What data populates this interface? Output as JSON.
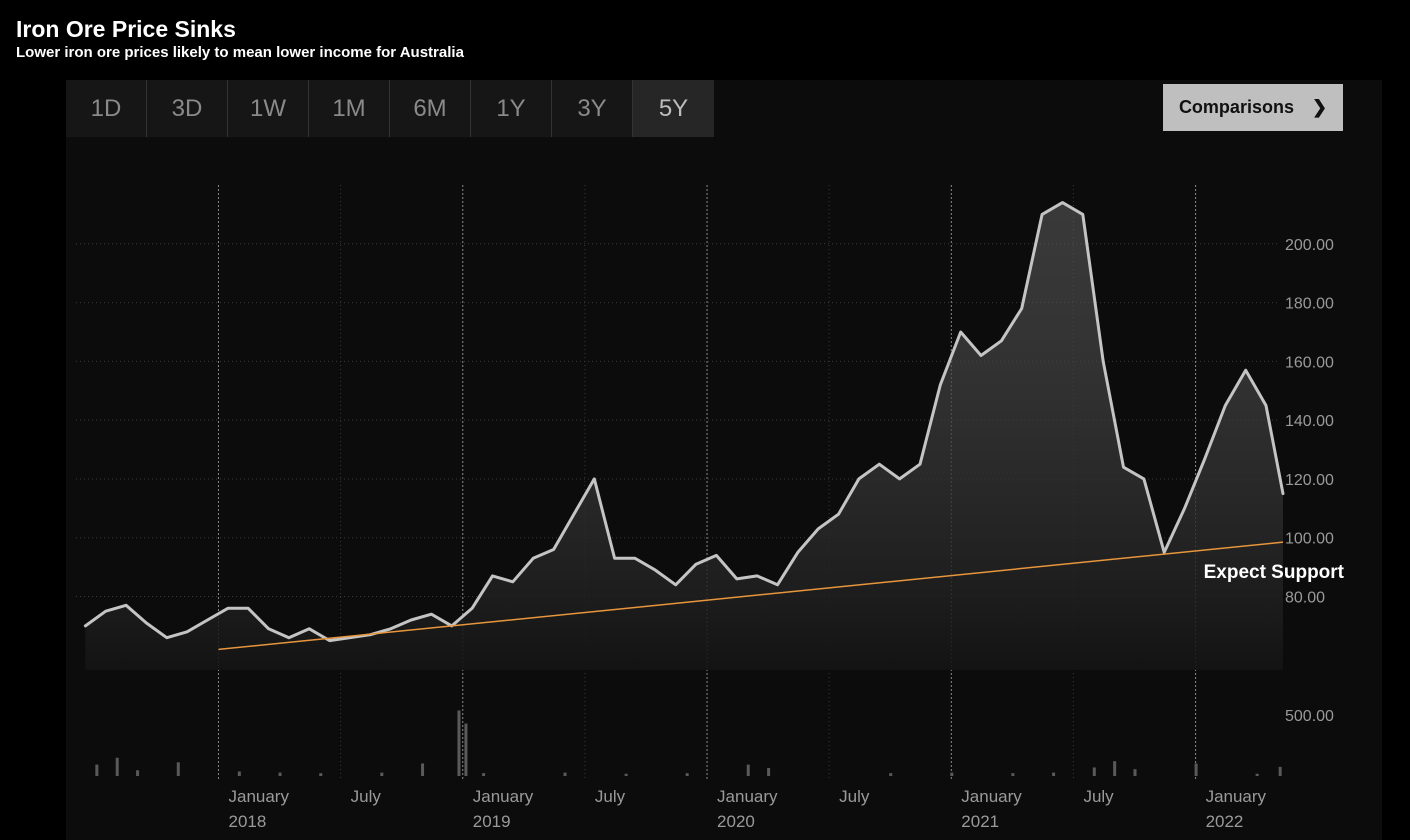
{
  "header": {
    "title": "Iron Ore Price Sinks",
    "subtitle": "Lower iron ore prices likely to mean lower income for Australia"
  },
  "toolbar": {
    "tabs": [
      {
        "label": "1D",
        "active": false
      },
      {
        "label": "3D",
        "active": false
      },
      {
        "label": "1W",
        "active": false
      },
      {
        "label": "1M",
        "active": false
      },
      {
        "label": "6M",
        "active": false
      },
      {
        "label": "1Y",
        "active": false
      },
      {
        "label": "3Y",
        "active": false
      },
      {
        "label": "5Y",
        "active": true
      }
    ],
    "comparisons_label": "Comparisons",
    "comparisons_icon": "chevron-right-icon"
  },
  "chart_data": {
    "type": "line",
    "title": "Iron Ore Price Sinks",
    "subtitle": "Lower iron ore prices likely to mean lower income for Australia",
    "x_axis": {
      "range": [
        "2017-06",
        "2022-05"
      ],
      "tick_labels": [
        {
          "month": "January",
          "year": "2018",
          "x": "2018-01"
        },
        {
          "month": "July",
          "year": "",
          "x": "2018-07"
        },
        {
          "month": "January",
          "year": "2019",
          "x": "2019-01"
        },
        {
          "month": "July",
          "year": "",
          "x": "2019-07"
        },
        {
          "month": "January",
          "year": "2020",
          "x": "2020-01"
        },
        {
          "month": "July",
          "year": "",
          "x": "2020-07"
        },
        {
          "month": "January",
          "year": "2021",
          "x": "2021-01"
        },
        {
          "month": "July",
          "year": "",
          "x": "2021-07"
        },
        {
          "month": "January",
          "year": "2022",
          "x": "2022-01"
        }
      ]
    },
    "y_axis": {
      "range": [
        55,
        220
      ],
      "ticks": [
        "80.00",
        "100.00",
        "120.00",
        "140.00",
        "160.00",
        "180.00",
        "200.00"
      ]
    },
    "grid": true,
    "price_series": {
      "name": "Iron ore price",
      "color": "#c4c4c4",
      "points": [
        [
          "2017-06-15",
          70
        ],
        [
          "2017-07-15",
          75
        ],
        [
          "2017-08-15",
          77
        ],
        [
          "2017-09-15",
          71
        ],
        [
          "2017-10-15",
          66
        ],
        [
          "2017-11-15",
          68
        ],
        [
          "2017-12-15",
          72
        ],
        [
          "2018-01-15",
          76
        ],
        [
          "2018-02-15",
          76
        ],
        [
          "2018-03-15",
          69
        ],
        [
          "2018-04-15",
          66
        ],
        [
          "2018-05-15",
          69
        ],
        [
          "2018-06-15",
          65
        ],
        [
          "2018-07-15",
          66
        ],
        [
          "2018-08-15",
          67
        ],
        [
          "2018-09-15",
          69
        ],
        [
          "2018-10-15",
          72
        ],
        [
          "2018-11-15",
          74
        ],
        [
          "2018-12-15",
          70
        ],
        [
          "2019-01-15",
          76
        ],
        [
          "2019-02-15",
          87
        ],
        [
          "2019-03-15",
          85
        ],
        [
          "2019-04-15",
          93
        ],
        [
          "2019-05-15",
          96
        ],
        [
          "2019-06-15",
          108
        ],
        [
          "2019-07-15",
          120
        ],
        [
          "2019-08-15",
          93
        ],
        [
          "2019-09-15",
          93
        ],
        [
          "2019-10-15",
          89
        ],
        [
          "2019-11-15",
          84
        ],
        [
          "2019-12-15",
          91
        ],
        [
          "2020-01-15",
          94
        ],
        [
          "2020-02-15",
          86
        ],
        [
          "2020-03-15",
          87
        ],
        [
          "2020-04-15",
          84
        ],
        [
          "2020-05-15",
          95
        ],
        [
          "2020-06-15",
          103
        ],
        [
          "2020-07-15",
          108
        ],
        [
          "2020-08-15",
          120
        ],
        [
          "2020-09-15",
          125
        ],
        [
          "2020-10-15",
          120
        ],
        [
          "2020-11-15",
          125
        ],
        [
          "2020-12-15",
          152
        ],
        [
          "2021-01-15",
          170
        ],
        [
          "2021-02-15",
          162
        ],
        [
          "2021-03-15",
          167
        ],
        [
          "2021-04-15",
          178
        ],
        [
          "2021-05-15",
          210
        ],
        [
          "2021-06-15",
          214
        ],
        [
          "2021-07-15",
          210
        ],
        [
          "2021-08-15",
          160
        ],
        [
          "2021-09-15",
          124
        ],
        [
          "2021-10-15",
          120
        ],
        [
          "2021-11-15",
          95
        ],
        [
          "2021-12-15",
          110
        ],
        [
          "2022-01-15",
          127
        ],
        [
          "2022-02-15",
          145
        ],
        [
          "2022-03-15",
          157
        ],
        [
          "2022-04-15",
          145
        ],
        [
          "2022-05-10",
          115
        ]
      ]
    },
    "support_line": {
      "color": "#e8963d",
      "start": [
        "2018-01-01",
        62
      ],
      "end": [
        "2022-05-10",
        98.5
      ],
      "annotation": "Expect Support"
    },
    "volume": {
      "tick_label": "500.00",
      "color": "#5a5a5a",
      "bars": [
        [
          "2017-07-01",
          20
        ],
        [
          "2017-08-01",
          32
        ],
        [
          "2017-09-01",
          10
        ],
        [
          "2017-11-01",
          24
        ],
        [
          "2018-02-01",
          8
        ],
        [
          "2018-04-01",
          6
        ],
        [
          "2018-06-01",
          5
        ],
        [
          "2018-09-01",
          6
        ],
        [
          "2018-11-01",
          22
        ],
        [
          "2018-12-25",
          115
        ],
        [
          "2019-01-05",
          92
        ],
        [
          "2019-02-01",
          5
        ],
        [
          "2019-06-01",
          6
        ],
        [
          "2019-09-01",
          4
        ],
        [
          "2019-12-01",
          5
        ],
        [
          "2020-03-01",
          20
        ],
        [
          "2020-04-01",
          14
        ],
        [
          "2020-10-01",
          5
        ],
        [
          "2021-01-01",
          6
        ],
        [
          "2021-04-01",
          5
        ],
        [
          "2021-06-01",
          6
        ],
        [
          "2021-08-01",
          15
        ],
        [
          "2021-09-01",
          26
        ],
        [
          "2021-10-01",
          12
        ],
        [
          "2022-01-01",
          22
        ],
        [
          "2022-04-01",
          4
        ],
        [
          "2022-05-05",
          16
        ]
      ]
    }
  }
}
